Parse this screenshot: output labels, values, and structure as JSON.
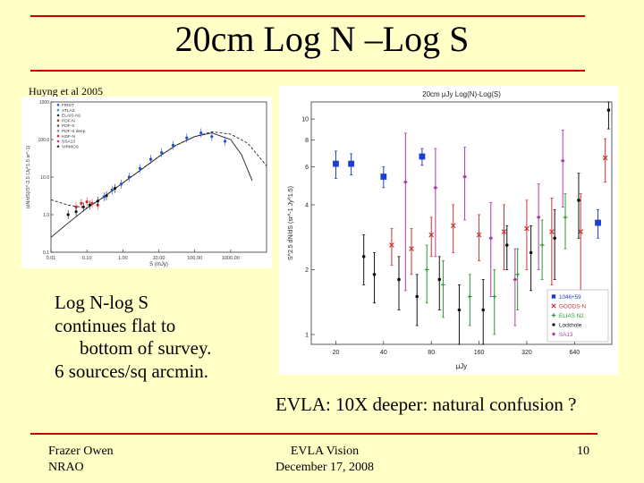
{
  "slide": {
    "title": "20cm  Log N –Log S",
    "credit": "Huyng et al 2005",
    "body_lines": [
      "Log N-log S",
      "continues flat to",
      "bottom of survey.",
      "6 sources/sq arcmin."
    ],
    "evla_note": "EVLA: 10X deeper: natural confusion ?",
    "footer": {
      "left": [
        "Frazer Owen",
        "NRAO"
      ],
      "center": [
        "EVLA Vision",
        "December 17, 2008"
      ],
      "page": "10"
    },
    "colors": {
      "background": "#ffffc6",
      "rule": "#cc0000"
    }
  },
  "chart_data": [
    {
      "type": "scatter",
      "title": "",
      "xlabel": "S (mJy)",
      "ylabel": "(dN/dS)/S^-2.5 (Jy^1.5 sr^-1)",
      "xscale": "log",
      "yscale": "log",
      "xlim": [
        0.01,
        10000
      ],
      "ylim": [
        0.1,
        1000
      ],
      "xticks": [
        "0.01",
        "0.10",
        "1.00",
        "10.00",
        "100.00",
        "1000.00"
      ],
      "yticks": [
        "0.1",
        "1.0",
        "10.0",
        "100.0",
        "1000"
      ],
      "legend": [
        "FIRST",
        "ATLAS",
        "ELAIS-N1",
        "PDF-N",
        "PDF-S",
        "PDF-S deep",
        "HDF-N",
        "SSA13",
        "VIRMOS"
      ],
      "series": [
        {
          "name": "Survey data (blue)",
          "color": "#1e4fcf",
          "x": [
            0.3,
            0.5,
            0.9,
            1.5,
            3,
            6,
            12,
            25,
            60,
            150,
            300,
            700
          ],
          "y": [
            3,
            4.5,
            6.5,
            10,
            17,
            30,
            45,
            70,
            110,
            150,
            120,
            90
          ]
        },
        {
          "name": "Faint counts (red)",
          "color": "#d62828",
          "x": [
            0.05,
            0.07,
            0.1,
            0.14,
            0.2
          ],
          "y": [
            1.6,
            2.0,
            2.2,
            2.0,
            1.8
          ]
        },
        {
          "name": "Faint counts (black)",
          "color": "#111111",
          "x": [
            0.03,
            0.05,
            0.08,
            0.12,
            0.2,
            0.35,
            0.6
          ],
          "y": [
            1.0,
            1.2,
            1.6,
            1.8,
            2.3,
            3.2,
            5
          ]
        }
      ],
      "models": [
        {
          "name": "Model fit (solid)",
          "style": "solid",
          "x": [
            0.01,
            0.03,
            0.1,
            0.3,
            1,
            3,
            10,
            30,
            100,
            300,
            1000,
            2000,
            4000
          ],
          "y": [
            0.25,
            0.6,
            1.5,
            3,
            7,
            15,
            35,
            70,
            120,
            150,
            100,
            40,
            8
          ]
        },
        {
          "name": "Model fit (dashed)",
          "style": "dashed",
          "x": [
            0.01,
            0.03,
            0.1,
            0.3,
            1,
            3,
            10,
            30,
            100,
            300,
            1000,
            3000,
            10000
          ],
          "y": [
            2.5,
            1.8,
            1.5,
            3,
            7,
            15,
            35,
            70,
            120,
            160,
            140,
            80,
            20
          ]
        }
      ]
    },
    {
      "type": "scatter",
      "title": "20cm μJy Log(N)-Log(S)",
      "xlabel": "μJy",
      "ylabel": "S^2.5 dN/dS (sr^-1 Jy^1.5)",
      "xscale": "log",
      "yscale": "log",
      "xlim": [
        14,
        1100
      ],
      "ylim": [
        0.9,
        12
      ],
      "xticks": [
        20,
        40,
        80,
        160,
        320,
        640
      ],
      "yticks": [
        1,
        2,
        4,
        6,
        8,
        10
      ],
      "legend": [
        "1046+59",
        "GOODS-N",
        "ELIAS N2",
        "Lockhole",
        "SA13"
      ],
      "series": [
        {
          "name": "1046+59",
          "marker": "square",
          "color": "#1d3fcc",
          "x": [
            20,
            25,
            40,
            70,
            900
          ],
          "y": [
            6.2,
            6.2,
            5.4,
            6.7,
            3.3
          ],
          "yerr": [
            0.9,
            0.7,
            0.6,
            0.6,
            0.5
          ]
        },
        {
          "name": "GOODS-N",
          "marker": "x",
          "color": "#cc3333",
          "x": [
            45,
            60,
            80,
            110,
            160,
            230,
            320,
            460,
            700,
            1000
          ],
          "y": [
            2.6,
            2.5,
            2.9,
            3.2,
            2.9,
            3.0,
            3.1,
            3.0,
            3.0,
            6.6
          ],
          "yerr": [
            0.5,
            0.6,
            0.6,
            0.8,
            0.7,
            1.0,
            1.1,
            1.3,
            1.5,
            1.5
          ]
        },
        {
          "name": "ELIAS N2",
          "marker": "plus",
          "color": "#2a9a2a",
          "x": [
            75,
            95,
            140,
            200,
            280,
            400,
            560
          ],
          "y": [
            2.0,
            1.7,
            1.5,
            1.5,
            1.9,
            2.6,
            3.5
          ],
          "yerr": [
            0.6,
            0.5,
            0.4,
            0.5,
            0.6,
            0.8,
            1.0
          ]
        },
        {
          "name": "Lockhole",
          "marker": "dot",
          "color": "#111111",
          "x": [
            30,
            35,
            50,
            65,
            90,
            120,
            170,
            240,
            340,
            480,
            680,
            1050
          ],
          "y": [
            2.3,
            1.9,
            1.8,
            1.5,
            1.8,
            1.3,
            1.3,
            2.6,
            2.4,
            2.8,
            4.2,
            11
          ],
          "yerr": [
            0.6,
            0.5,
            0.5,
            0.4,
            0.5,
            0.4,
            0.5,
            0.6,
            0.8,
            1.0,
            1.4,
            2.0
          ]
        },
        {
          "name": "SA13",
          "marker": "diamond",
          "color": "#b53aa8",
          "x": [
            55,
            85,
            130,
            190,
            270,
            380,
            540
          ],
          "y": [
            5.1,
            4.8,
            5.4,
            2.8,
            1.8,
            3.5,
            6.4
          ],
          "yerr": [
            3.5,
            2.5,
            2.0,
            1.3,
            0.7,
            1.5,
            2.5
          ]
        }
      ]
    }
  ]
}
